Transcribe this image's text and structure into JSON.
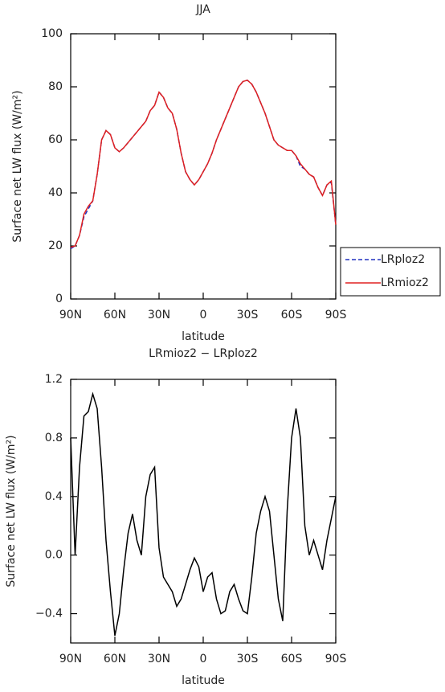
{
  "chart_data": [
    {
      "type": "line",
      "title": "JJA",
      "x_label": "latitude",
      "y_label": "Surface net LW flux (W/m²)",
      "xlim": [
        90,
        -90
      ],
      "xticks": [
        {
          "value": 90,
          "label": "90N"
        },
        {
          "value": 60,
          "label": "60N"
        },
        {
          "value": 30,
          "label": "30N"
        },
        0,
        {
          "value": -30,
          "label": "30S"
        },
        {
          "value": -60,
          "label": "60S"
        },
        {
          "value": -90,
          "label": "90S"
        }
      ],
      "ylim": [
        0,
        100
      ],
      "yticks": [
        0,
        20,
        40,
        60,
        80,
        100
      ],
      "legend": "right",
      "x": [
        90,
        87,
        84,
        81,
        78,
        75,
        72,
        69,
        66,
        63,
        60,
        57,
        54,
        51,
        48,
        45,
        42,
        39,
        36,
        33,
        30,
        27,
        24,
        21,
        18,
        15,
        12,
        9,
        6,
        3,
        0,
        -3,
        -6,
        -9,
        -12,
        -15,
        -18,
        -21,
        -24,
        -27,
        -30,
        -33,
        -36,
        -39,
        -42,
        -45,
        -48,
        -51,
        -54,
        -57,
        -60,
        -63,
        -66,
        -69,
        -72,
        -75,
        -78,
        -81,
        -84,
        -87,
        -90
      ],
      "series": [
        {
          "name": "LRploz2",
          "color": "#2030c0",
          "dash": true,
          "values": [
            19,
            20,
            24,
            31,
            34,
            37,
            47,
            60,
            63.5,
            62,
            57,
            55.5,
            57,
            59,
            61,
            63,
            65,
            67,
            71,
            73,
            78,
            76,
            72,
            70,
            64,
            55,
            48,
            45,
            43,
            45,
            48,
            51,
            55,
            60,
            64,
            68,
            72,
            76,
            80,
            82,
            82.5,
            81,
            78,
            74,
            70,
            65,
            60,
            58,
            57,
            56,
            56,
            54,
            50,
            49,
            47,
            46,
            42,
            39,
            43,
            44,
            28
          ]
        },
        {
          "name": "LRmioz2",
          "color": "#e02020",
          "dash": false,
          "values": [
            19.5,
            20,
            24,
            32,
            35,
            37,
            47,
            60,
            63.5,
            62,
            57,
            55.5,
            57,
            59,
            61,
            63,
            65,
            67,
            71,
            73,
            78,
            76,
            72,
            70,
            64,
            55,
            48,
            45,
            43,
            45,
            48,
            51,
            55,
            60,
            64,
            68,
            72,
            76,
            80,
            82,
            82.5,
            81,
            78,
            74,
            70,
            65,
            60,
            58,
            57,
            56,
            56,
            54,
            51,
            49,
            47,
            46,
            42,
            39,
            43,
            44.5,
            28
          ]
        }
      ]
    },
    {
      "type": "line",
      "title": "LRmioz2 − LRploz2",
      "x_label": "latitude",
      "y_label": "Surface net LW flux (W/m²)",
      "xlim": [
        90,
        -90
      ],
      "xticks": [
        {
          "value": 90,
          "label": "90N"
        },
        {
          "value": 60,
          "label": "60N"
        },
        {
          "value": 30,
          "label": "30N"
        },
        0,
        {
          "value": -30,
          "label": "30S"
        },
        {
          "value": -60,
          "label": "60S"
        },
        {
          "value": -90,
          "label": "90S"
        }
      ],
      "ylim": [
        -0.6,
        1.2
      ],
      "yticks": [
        {
          "value": -0.4,
          "label": "−0.4"
        },
        {
          "value": 0,
          "label": "0.0"
        },
        0.4,
        0.8,
        1.2
      ],
      "x": [
        90,
        87,
        84,
        81,
        78,
        75,
        72,
        69,
        66,
        63,
        60,
        57,
        54,
        51,
        48,
        45,
        42,
        39,
        36,
        33,
        30,
        27,
        24,
        21,
        18,
        15,
        12,
        9,
        6,
        3,
        0,
        -3,
        -6,
        -9,
        -12,
        -15,
        -18,
        -21,
        -24,
        -27,
        -30,
        -33,
        -36,
        -39,
        -42,
        -45,
        -48,
        -51,
        -54,
        -57,
        -60,
        -63,
        -66,
        -69,
        -72,
        -75,
        -78,
        -81,
        -84,
        -87,
        -90
      ],
      "series": [
        {
          "color": "#000000",
          "values": [
            0.8,
            0.0,
            0.6,
            0.95,
            0.98,
            1.1,
            1.0,
            0.6,
            0.1,
            -0.25,
            -0.55,
            -0.4,
            -0.1,
            0.15,
            0.28,
            0.1,
            0.0,
            0.4,
            0.55,
            0.6,
            0.05,
            -0.15,
            -0.2,
            -0.25,
            -0.35,
            -0.3,
            -0.2,
            -0.1,
            -0.02,
            -0.08,
            -0.25,
            -0.15,
            -0.12,
            -0.3,
            -0.4,
            -0.38,
            -0.25,
            -0.2,
            -0.3,
            -0.38,
            -0.4,
            -0.15,
            0.15,
            0.3,
            0.4,
            0.3,
            0.0,
            -0.3,
            -0.45,
            0.3,
            0.8,
            1.0,
            0.8,
            0.2,
            0.0,
            0.1,
            0.0,
            -0.1,
            0.1,
            0.25,
            0.4
          ]
        }
      ]
    }
  ]
}
